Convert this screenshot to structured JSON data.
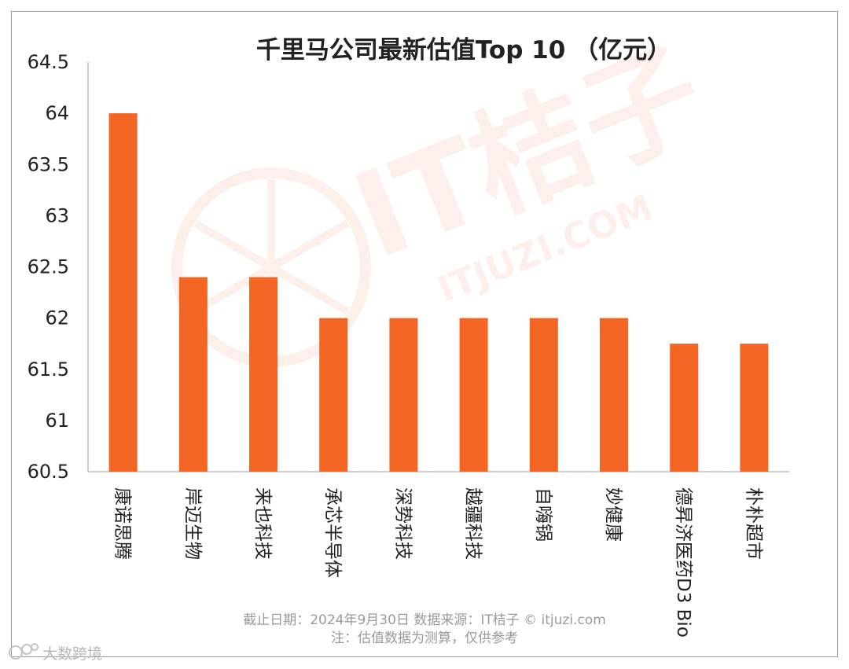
{
  "chart_data": {
    "type": "bar",
    "title": "千里马公司最新估值Top 10 （亿元）",
    "categories": [
      "康诺思腾",
      "岸迈生物",
      "来也科技",
      "承芯半导体",
      "深势科技",
      "越疆科技",
      "自嗨锅",
      "妙健康",
      "德昇济医药D3 Bio",
      "朴朴超市"
    ],
    "values": [
      64,
      62.4,
      62.4,
      62,
      62,
      62,
      62,
      62,
      61.75,
      61.75
    ],
    "ylim": [
      60.5,
      64.5
    ],
    "yticks": [
      "64.5",
      "64",
      "63.5",
      "63",
      "62.5",
      "62",
      "61.5",
      "61",
      "60.5"
    ],
    "grid": false,
    "bar_color": "#f26522"
  },
  "footer": {
    "line1": "截止日期：2024年9月30日    数据来源：IT桔子 © itjuzi.com",
    "line2": "注：估值数据为测算，仅供参考"
  },
  "watermark": {
    "brand": "IT桔子",
    "site": "ITJUZI.COM",
    "color": "#f3693a"
  },
  "corner_mark": {
    "text": "大数跨境"
  }
}
